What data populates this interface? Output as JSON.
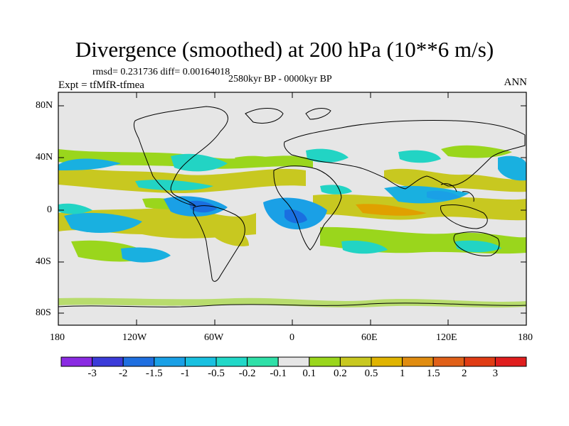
{
  "title": "Divergence (smoothed) at 200 hPa (10**6 m/s)",
  "stats": "rmsd= 0.231736 diff= 0.00164018",
  "experiment": "Expt = tfMfR-tfmea",
  "period": "2580kyr BP - 0000kyr BP",
  "season": "ANN",
  "lat_ticks": [
    "80N",
    "40N",
    "0",
    "40S",
    "80S"
  ],
  "lon_ticks": [
    "180",
    "120W",
    "60W",
    "0",
    "60E",
    "120E",
    "180"
  ],
  "colorbar": {
    "labels": [
      "-3",
      "-2",
      "-1.5",
      "-1",
      "-0.5",
      "-0.2",
      "-0.1",
      "0.1",
      "0.2",
      "0.5",
      "1",
      "1.5",
      "2",
      "3"
    ],
    "colors": [
      "#8a2be2",
      "#3b3bd9",
      "#1f6fe0",
      "#1aa0e6",
      "#19c0e0",
      "#21d8c8",
      "#2fe0a8",
      "#e6e6e6",
      "#9ad61c",
      "#c8c820",
      "#e0b400",
      "#e08c10",
      "#e06018",
      "#e03c14",
      "#e01e1e"
    ]
  },
  "colors": {
    "background": "#e6e6e6",
    "neg_strong": "#1a6fe0",
    "neg_mid": "#19b0e0",
    "neg_weak": "#22d4c4",
    "pos_weak": "#9ad61c",
    "pos_mid": "#c8c820",
    "pos_strong": "#e0a000"
  }
}
